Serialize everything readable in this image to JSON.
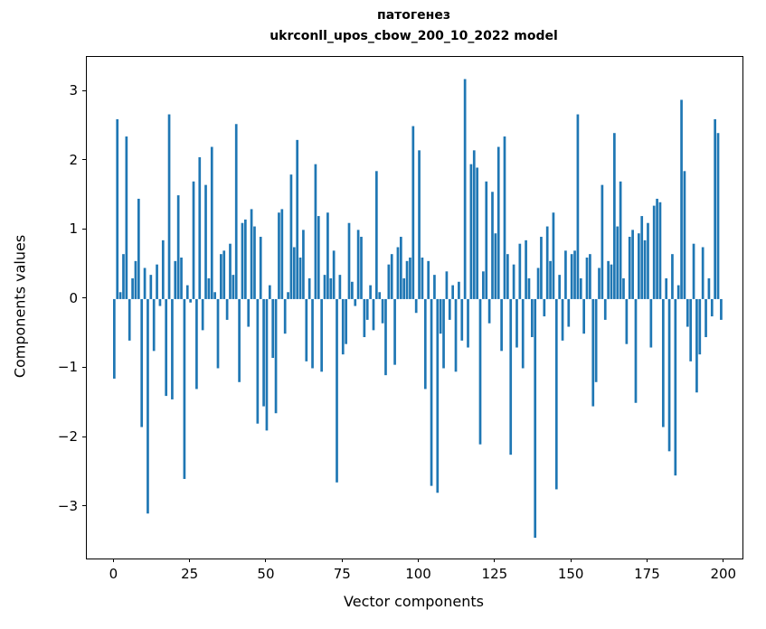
{
  "figure": {
    "title_line1": "патогенез",
    "title_line2": "ukrconll_upos_cbow_200_10_2022 model",
    "xlabel": "Vector components",
    "ylabel": "Components values",
    "bar_color": "#1f77b4"
  },
  "chart_data": {
    "type": "bar",
    "title": "патогенез",
    "subtitle": "ukrconll_upos_cbow_200_10_2022 model",
    "xlabel": "Vector components",
    "ylabel": "Components values",
    "legend": "none",
    "grid": false,
    "xlim": [
      -9,
      206
    ],
    "ylim": [
      -3.75,
      3.5
    ],
    "x_ticks": [
      0,
      25,
      50,
      75,
      100,
      125,
      150,
      175,
      200
    ],
    "y_ticks": [
      -3,
      -2,
      -1,
      0,
      1,
      2,
      3
    ],
    "bar_color": "#1f77b4",
    "x_start": 0,
    "values": [
      -1.15,
      2.6,
      0.1,
      0.65,
      2.35,
      -0.6,
      0.3,
      0.55,
      1.45,
      -1.85,
      0.45,
      -3.1,
      0.35,
      -0.75,
      0.5,
      -0.1,
      0.85,
      -1.4,
      2.67,
      -1.45,
      0.55,
      1.5,
      0.6,
      -2.6,
      0.2,
      -0.05,
      1.7,
      -1.3,
      2.05,
      -0.45,
      1.65,
      0.3,
      2.2,
      0.1,
      -1.0,
      0.65,
      0.7,
      -0.3,
      0.8,
      0.35,
      2.53,
      -1.2,
      1.1,
      1.15,
      -0.4,
      1.3,
      1.05,
      -1.8,
      0.9,
      -1.55,
      -1.9,
      0.2,
      -0.85,
      -1.65,
      1.25,
      1.3,
      -0.5,
      0.1,
      1.8,
      0.75,
      2.3,
      0.6,
      1.0,
      -0.9,
      0.3,
      -1.0,
      1.95,
      1.2,
      -1.05,
      0.35,
      1.25,
      0.3,
      0.7,
      -2.65,
      0.35,
      -0.8,
      -0.65,
      1.1,
      0.25,
      -0.1,
      1.0,
      0.9,
      -0.55,
      -0.3,
      0.2,
      -0.45,
      1.85,
      0.1,
      -0.35,
      -1.1,
      0.5,
      0.65,
      -0.95,
      0.75,
      0.9,
      0.3,
      0.55,
      0.6,
      2.5,
      -0.2,
      2.15,
      0.6,
      -1.3,
      0.55,
      -2.7,
      0.35,
      -2.8,
      -0.5,
      -1.0,
      0.4,
      -0.3,
      0.2,
      -1.05,
      0.25,
      -0.6,
      3.18,
      -0.7,
      1.95,
      2.15,
      1.9,
      -2.1,
      0.4,
      1.7,
      -0.35,
      1.55,
      0.95,
      2.2,
      -0.75,
      2.35,
      0.65,
      -2.25,
      0.5,
      -0.7,
      0.8,
      -1.0,
      0.85,
      0.3,
      -0.55,
      -3.45,
      0.45,
      0.9,
      -0.25,
      1.05,
      0.55,
      1.25,
      -2.75,
      0.35,
      -0.6,
      0.7,
      -0.4,
      0.65,
      0.7,
      2.67,
      0.3,
      -0.5,
      0.6,
      0.65,
      -1.55,
      -1.2,
      0.45,
      1.65,
      -0.3,
      0.55,
      0.5,
      2.4,
      1.05,
      1.7,
      0.3,
      -0.65,
      0.9,
      1.0,
      -1.5,
      0.95,
      1.2,
      0.85,
      1.1,
      -0.7,
      1.35,
      1.45,
      1.4,
      -1.85,
      0.3,
      -2.2,
      0.65,
      -2.55,
      0.2,
      2.88,
      1.85,
      -0.4,
      -0.9,
      0.8,
      -1.35,
      -0.8,
      0.75,
      -0.55,
      0.3,
      -0.25,
      2.6,
      2.4,
      -0.3
    ]
  }
}
